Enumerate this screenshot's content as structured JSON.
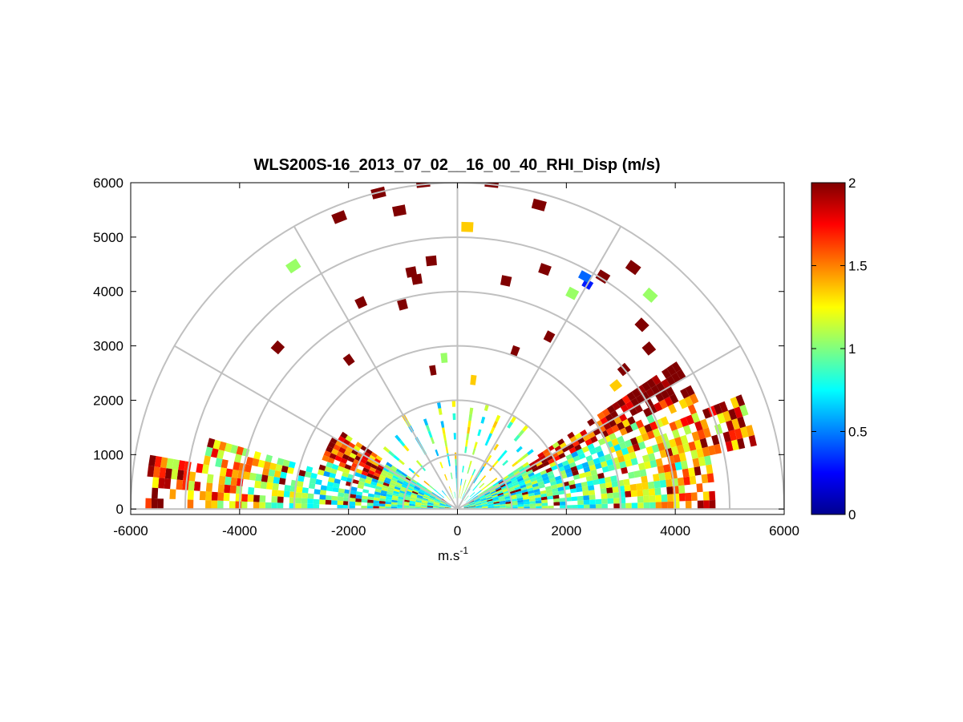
{
  "chart_data": {
    "type": "heatmap",
    "subtype": "polar-rhi-sector",
    "title": "WLS200S-16_2013_07_02__16_00_40_RHI_Disp (m/s)",
    "xlabel": "m.s",
    "xlabel_superscript": "-1",
    "ylabel": "",
    "xlim": [
      -6000,
      6000
    ],
    "ylim": [
      -100,
      6000
    ],
    "xticks": [
      "-6000",
      "-4000",
      "-2000",
      "0",
      "2000",
      "4000",
      "6000"
    ],
    "xtick_values": [
      -6000,
      -4000,
      -2000,
      0,
      2000,
      4000,
      6000
    ],
    "yticks": [
      "0",
      "1000",
      "2000",
      "3000",
      "4000",
      "5000",
      "6000"
    ],
    "ytick_values": [
      0,
      1000,
      2000,
      3000,
      4000,
      5000,
      6000
    ],
    "polar_grid": {
      "range_rings": [
        1000,
        2000,
        3000,
        4000,
        5000,
        6000
      ],
      "spokes_deg": [
        0,
        30,
        60,
        90,
        120,
        150,
        180
      ],
      "color": "#c0c0c0"
    },
    "grid": true,
    "colormap": "jet",
    "colorbar": {
      "min": 0,
      "max": 2,
      "ticks": [
        "0",
        "0.5",
        "1",
        "1.5",
        "2"
      ],
      "tick_values": [
        0,
        0.5,
        1,
        1.5,
        2
      ],
      "placement": "right"
    },
    "data_summary": "Radial velocity dispersion in m/s; values 0.5–1.2 dominate below 1000 m, patchy values of 1.8–2 (dark red) at long range and aloft, a few low values (~0.3) near x=2500, y=4300."
  }
}
